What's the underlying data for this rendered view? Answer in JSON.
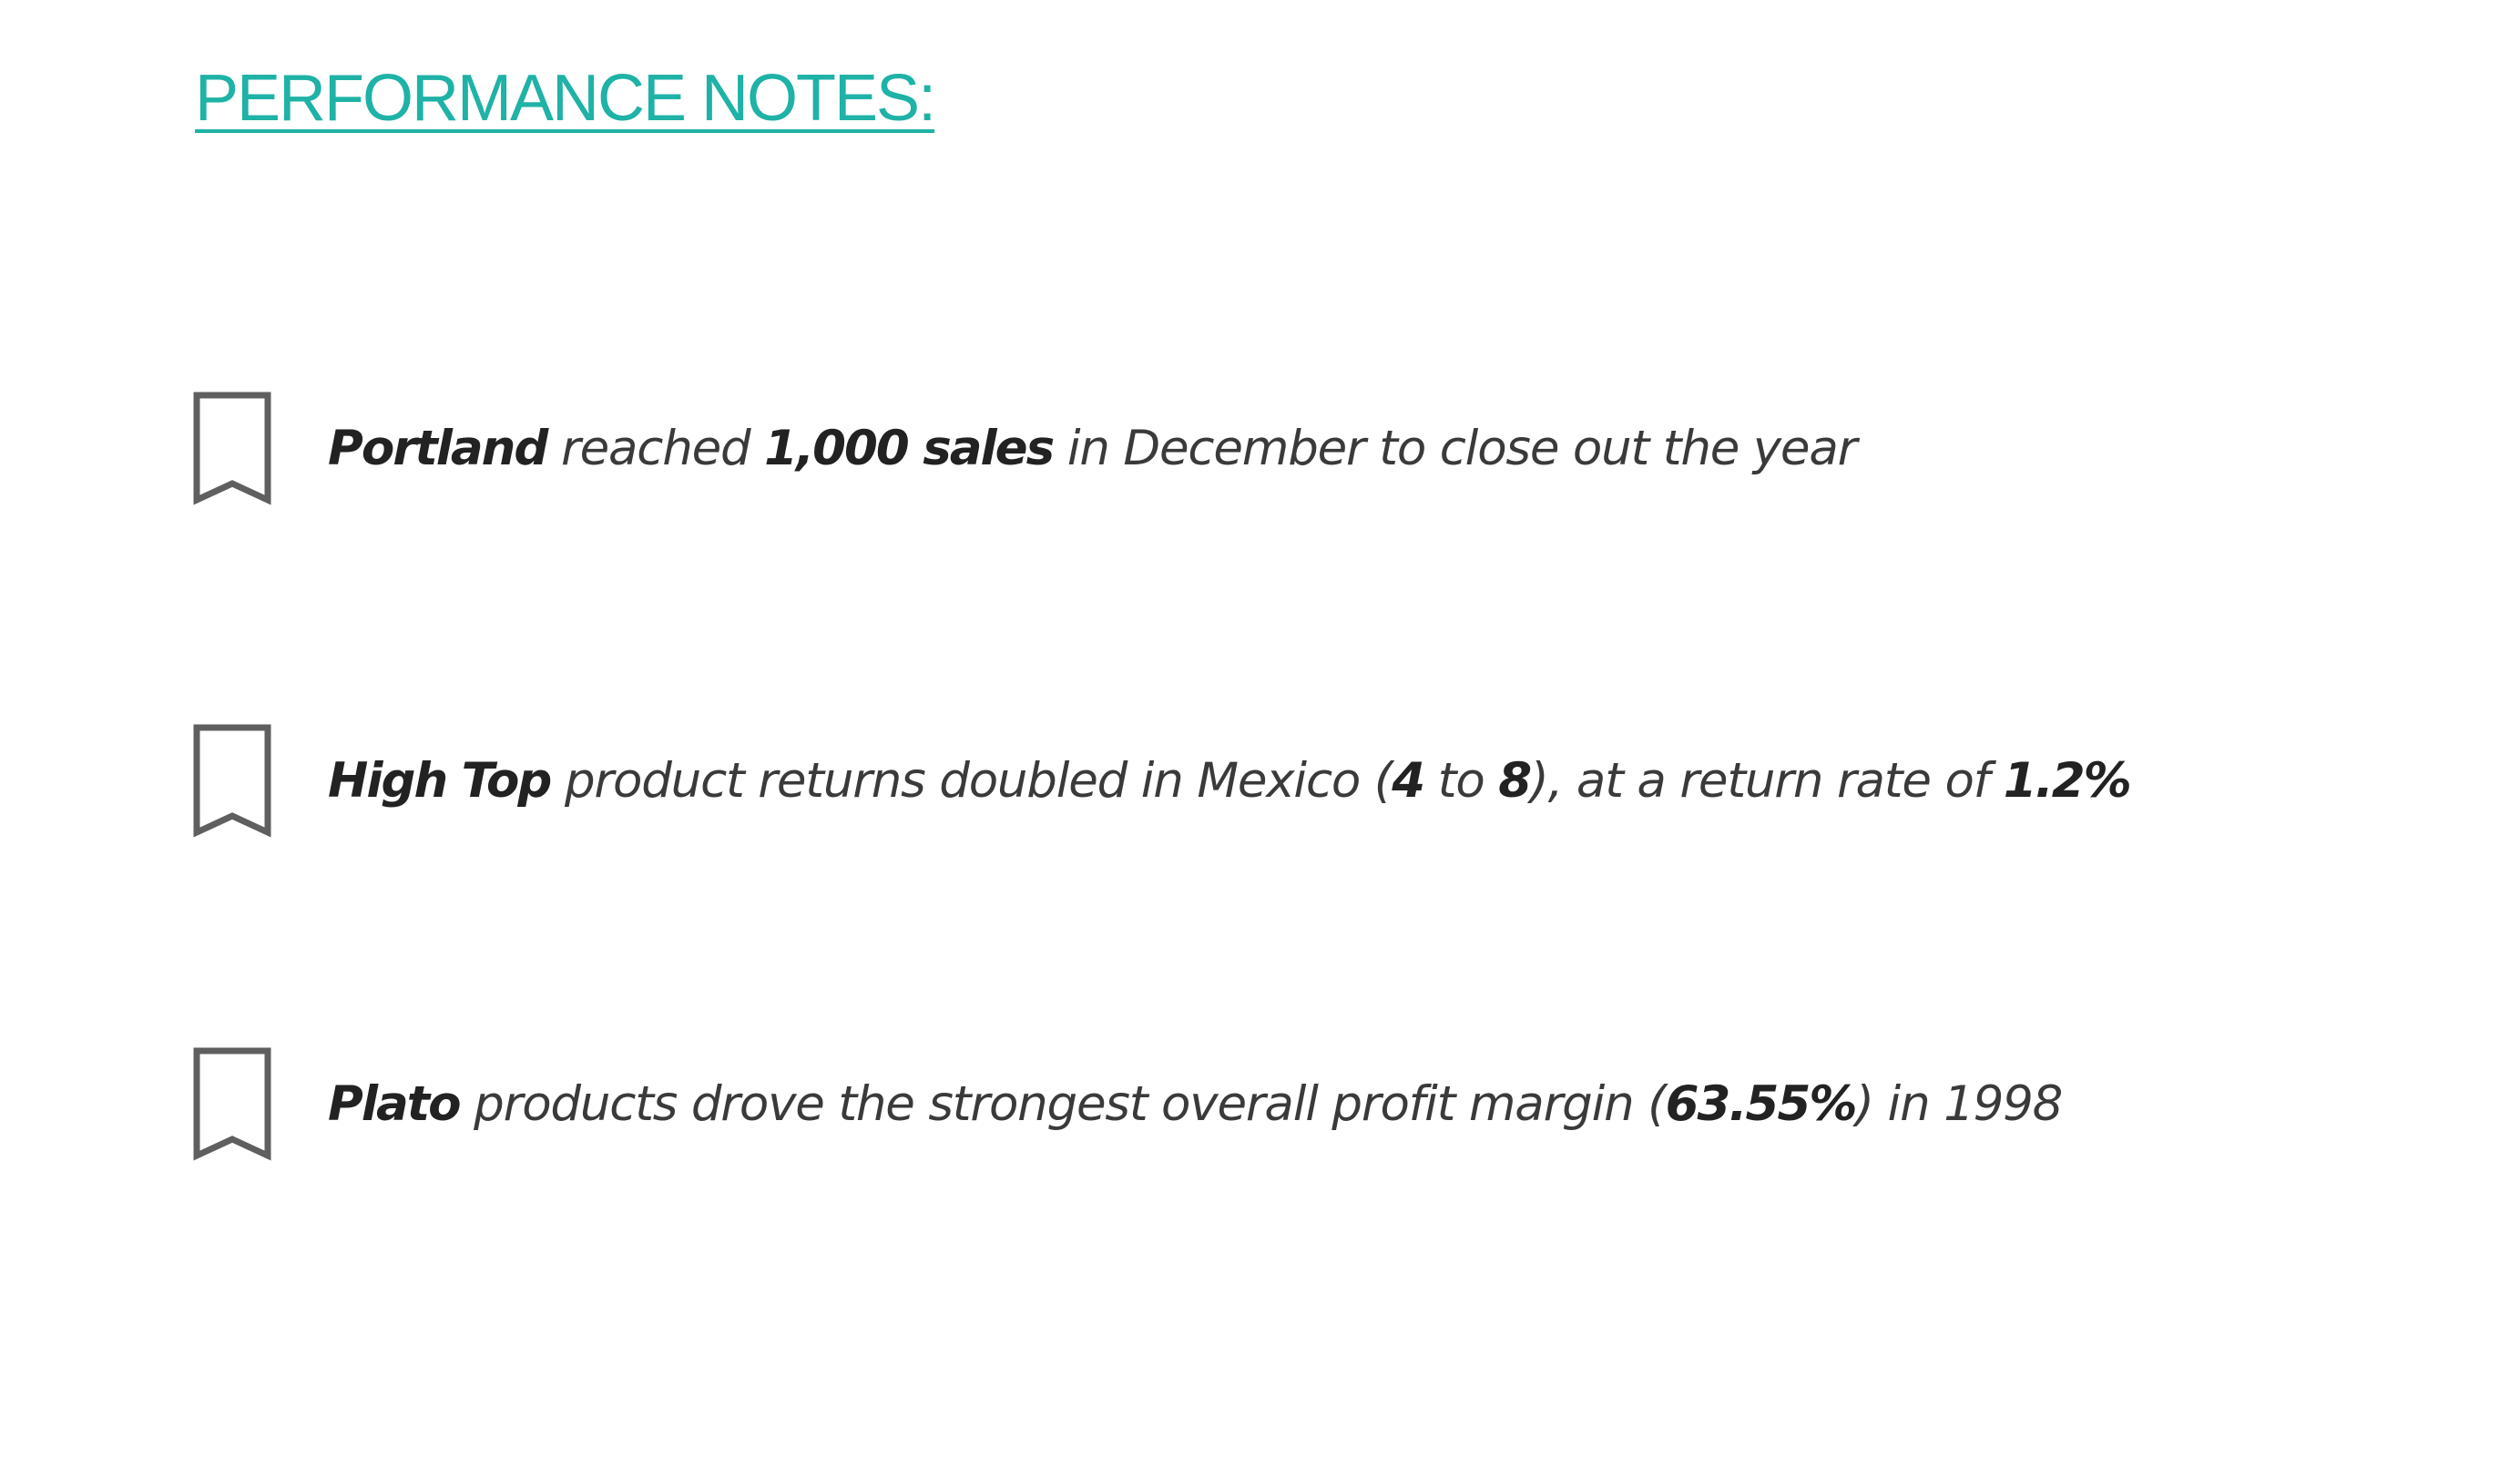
{
  "page": {
    "title": "PERFORMANCE NOTES:"
  },
  "colors": {
    "accent": "#1fb2a6",
    "icon": "#5f5f5f",
    "text": "#3a3a3a",
    "emphasis": "#222222"
  },
  "notes": [
    {
      "icon": "bookmark-icon",
      "parts": [
        {
          "text": "Portland",
          "bold": true
        },
        {
          "text": " reached ",
          "bold": false
        },
        {
          "text": "1,000 sales",
          "bold": true
        },
        {
          "text": " in December to close out the year",
          "bold": false
        }
      ]
    },
    {
      "icon": "bookmark-icon",
      "parts": [
        {
          "text": "High Top",
          "bold": true
        },
        {
          "text": " product returns doubled in Mexico (",
          "bold": false
        },
        {
          "text": "4",
          "bold": true
        },
        {
          "text": " to ",
          "bold": false
        },
        {
          "text": "8",
          "bold": true
        },
        {
          "text": "), at a return rate of ",
          "bold": false
        },
        {
          "text": "1.2%",
          "bold": true
        }
      ]
    },
    {
      "icon": "bookmark-icon",
      "parts": [
        {
          "text": "Plato",
          "bold": true
        },
        {
          "text": " products drove the strongest overall profit margin (",
          "bold": false
        },
        {
          "text": "63.55%",
          "bold": true
        },
        {
          "text": ") in 1998",
          "bold": false
        }
      ]
    }
  ]
}
